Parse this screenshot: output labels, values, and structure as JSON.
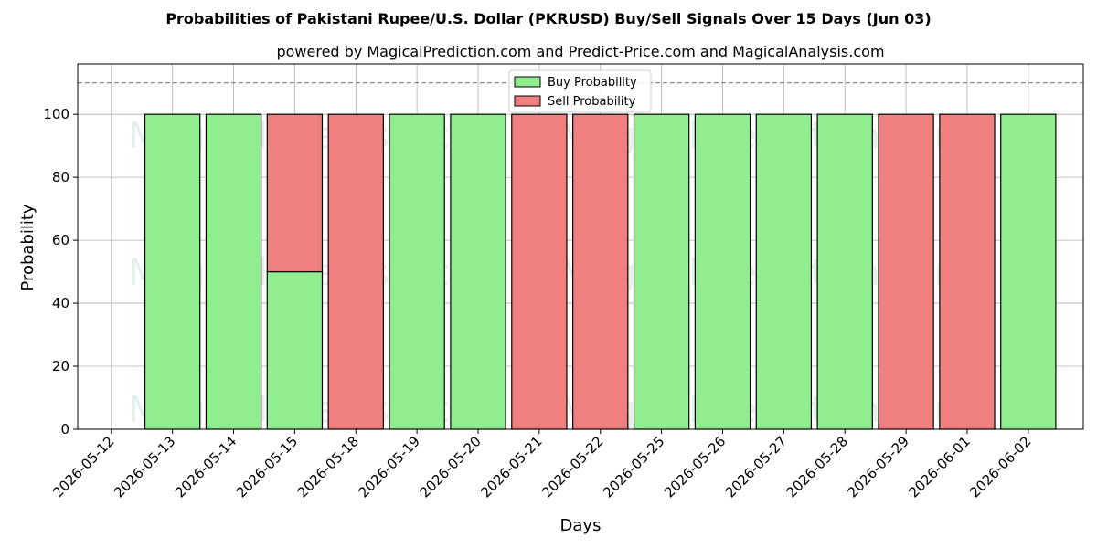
{
  "chart_data": {
    "type": "bar",
    "title": "Probabilities of Pakistani Rupee/U.S. Dollar (PKRUSD) Buy/Sell Signals Over 15 Days (Jun 03)",
    "subtitle": "powered by MagicalPrediction.com and Predict-Price.com and MagicalAnalysis.com",
    "xlabel": "Days",
    "ylabel": "Probability",
    "ylim": [
      0,
      116
    ],
    "yticks": [
      0,
      20,
      40,
      60,
      80,
      100
    ],
    "reference_line": 110,
    "grid": true,
    "legend_position": "top-center",
    "x_tick_labels": [
      "2026-05-12",
      "2026-05-13",
      "2026-05-14",
      "2026-05-15",
      "2026-05-18",
      "2026-05-19",
      "2026-05-20",
      "2026-05-21",
      "2026-05-22",
      "2026-05-25",
      "2026-05-26",
      "2026-05-27",
      "2026-05-28",
      "2026-05-29",
      "2026-06-01",
      "2026-06-02"
    ],
    "categories": [
      "2026-05-13",
      "2026-05-14",
      "2026-05-15",
      "2026-05-18",
      "2026-05-19",
      "2026-05-20",
      "2026-05-21",
      "2026-05-22",
      "2026-05-25",
      "2026-05-26",
      "2026-05-27",
      "2026-05-28",
      "2026-05-29",
      "2026-06-01",
      "2026-06-02"
    ],
    "series": [
      {
        "name": "Buy Probability",
        "color": "#90ee90",
        "values": [
          100,
          100,
          50,
          0,
          100,
          100,
          0,
          0,
          100,
          100,
          100,
          100,
          0,
          0,
          100
        ]
      },
      {
        "name": "Sell Probability",
        "color": "#f08080",
        "values": [
          0,
          0,
          50,
          100,
          0,
          0,
          100,
          100,
          0,
          0,
          0,
          0,
          100,
          100,
          0
        ]
      }
    ],
    "watermarks": [
      "MagicalAnalysis.com",
      "MagicalPrediction.com",
      "MagicalAnalysis.com",
      "MagicalPrediction.com",
      "MagicalAnalysis.com",
      "MagicalPrediction.com"
    ]
  }
}
